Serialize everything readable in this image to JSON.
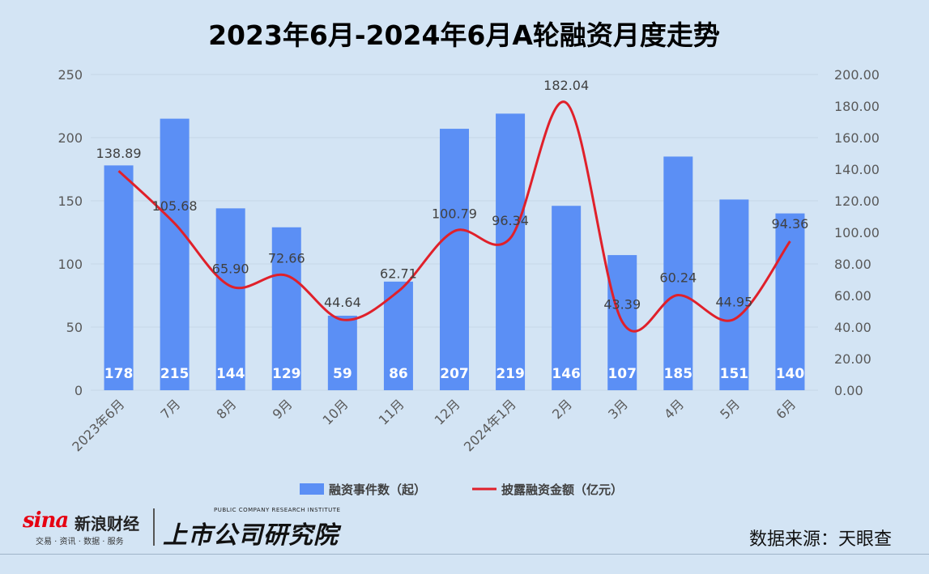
{
  "title": "2023年6月-2024年6月A轮融资月度走势",
  "footer": {
    "sina_en": "sina",
    "sina_cn": "新浪财经",
    "sina_sub": "交易 · 资讯 · 数据 · 服务",
    "research_en": "PUBLIC COMPANY RESEARCH INSTITUTE",
    "research_cn": "上市公司研究院",
    "source": "数据来源：天眼查"
  },
  "colors": {
    "background": "#d3e4f4",
    "bar": "#5b8ff5",
    "line": "#e0202a",
    "grid": "#c5d6e6"
  },
  "chart_data": {
    "type": "bar",
    "categories": [
      "2023年6月",
      "7月",
      "8月",
      "9月",
      "10月",
      "11月",
      "12月",
      "2024年1月",
      "2月",
      "3月",
      "4月",
      "5月",
      "6月"
    ],
    "series": [
      {
        "name": "融资事件数（起）",
        "type": "bar",
        "axis": "left",
        "values": [
          178,
          215,
          144,
          129,
          59,
          86,
          207,
          219,
          146,
          107,
          185,
          151,
          140
        ],
        "labels": [
          "178",
          "215",
          "144",
          "129",
          "59",
          "86",
          "207",
          "219",
          "146",
          "107",
          "185",
          "151",
          "140"
        ]
      },
      {
        "name": "披露融资金额（亿元）",
        "type": "line",
        "smooth": true,
        "axis": "right",
        "values": [
          138.89,
          105.68,
          65.9,
          72.66,
          44.64,
          62.71,
          100.79,
          96.34,
          182.04,
          43.39,
          60.24,
          44.95,
          94.36
        ],
        "labels": [
          "138.89",
          "105.68",
          "65.90",
          "72.66",
          "44.64",
          "62.71",
          "100.79",
          "96.34",
          "182.04",
          "43.39",
          "60.24",
          "44.95",
          "94.36"
        ]
      }
    ],
    "y_left": {
      "min": 0,
      "max": 250,
      "ticks": [
        "0",
        "50",
        "100",
        "150",
        "200",
        "250"
      ]
    },
    "y_right": {
      "min": 0,
      "max": 200,
      "ticks": [
        "0.00",
        "20.00",
        "40.00",
        "60.00",
        "80.00",
        "100.00",
        "120.00",
        "140.00",
        "160.00",
        "180.00",
        "200.00"
      ]
    },
    "grid": true,
    "legend": "bottom"
  }
}
